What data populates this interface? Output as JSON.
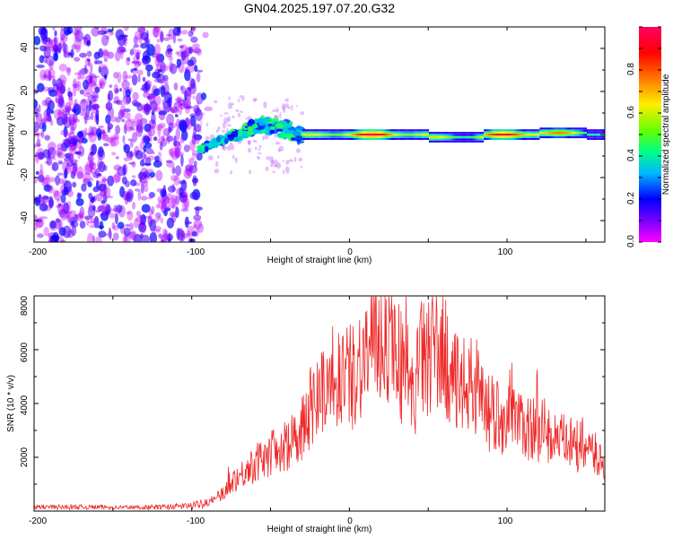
{
  "figure_title": "GN04.2025.197.07.20.G32",
  "colors": {
    "snr_line": "#ee2a2a",
    "colormap": [
      "#ff00ff",
      "#7700ff",
      "#0000ff",
      "#00b7ff",
      "#00ff88",
      "#66ff00",
      "#ffee00",
      "#ff7700",
      "#ff0000",
      "#ff0066"
    ]
  },
  "chart_data": [
    {
      "type": "heatmap",
      "title": "",
      "xlabel": "Height of straight line (km)",
      "ylabel": "Frequency (Hz)",
      "xlim": [
        -200,
        162
      ],
      "ylim": [
        -50,
        50
      ],
      "xticks": [
        "-200",
        "-100",
        "0",
        "100"
      ],
      "yticks": [
        "-40",
        "-20",
        "0",
        "20",
        "40"
      ],
      "colorbar": {
        "label": "Normalized spectral amplitude",
        "range": [
          0.0,
          1.0
        ],
        "ticks": [
          "0.0",
          "0.2",
          "0.4",
          "0.6",
          "0.8"
        ]
      },
      "features": [
        {
          "name": "noise",
          "x_range": [
            -200,
            -95
          ],
          "freq_range": [
            -50,
            50
          ],
          "amplitude": [
            0.05,
            0.25
          ]
        },
        {
          "name": "emerging-signal",
          "x_range": [
            -95,
            -30
          ],
          "freq_range": [
            -7,
            15
          ],
          "amplitude": [
            0.2,
            0.5
          ]
        },
        {
          "name": "stable-signal",
          "x_range": [
            -30,
            162
          ],
          "freq_range": [
            -3,
            3
          ],
          "amplitude": [
            0.4,
            0.95
          ]
        }
      ]
    },
    {
      "type": "line",
      "title": "",
      "xlabel": "Height of straight line (km)",
      "ylabel": "SNR (10 * v/v)",
      "xlim": [
        -200,
        162
      ],
      "ylim": [
        0,
        8000
      ],
      "xticks": [
        "-200",
        "-100",
        "0",
        "100"
      ],
      "yticks": [
        "2000",
        "4000",
        "6000",
        "8000"
      ],
      "series": [
        {
          "x": [
            -200,
            -180,
            -160,
            -140,
            -120,
            -100,
            -90,
            -80,
            -75,
            -70,
            -60,
            -50,
            -40,
            -35,
            -30,
            -25,
            -20,
            -15,
            -12,
            -10,
            -5,
            0,
            5,
            10,
            15,
            20,
            25,
            30,
            35,
            40,
            45,
            50,
            55,
            60,
            65,
            70,
            75,
            80,
            90,
            100,
            110,
            120,
            130,
            140,
            150,
            162
          ],
          "values": [
            150,
            150,
            150,
            140,
            150,
            200,
            350,
            700,
            1200,
            1400,
            1900,
            2300,
            2600,
            3000,
            3400,
            4200,
            4500,
            5200,
            5900,
            5200,
            5600,
            5300,
            5800,
            6300,
            6700,
            7000,
            7100,
            6500,
            5300,
            4500,
            6000,
            6400,
            6600,
            6200,
            5600,
            4700,
            5200,
            4800,
            3900,
            3700,
            3400,
            3300,
            2900,
            2700,
            2500,
            2000
          ]
        }
      ]
    }
  ]
}
